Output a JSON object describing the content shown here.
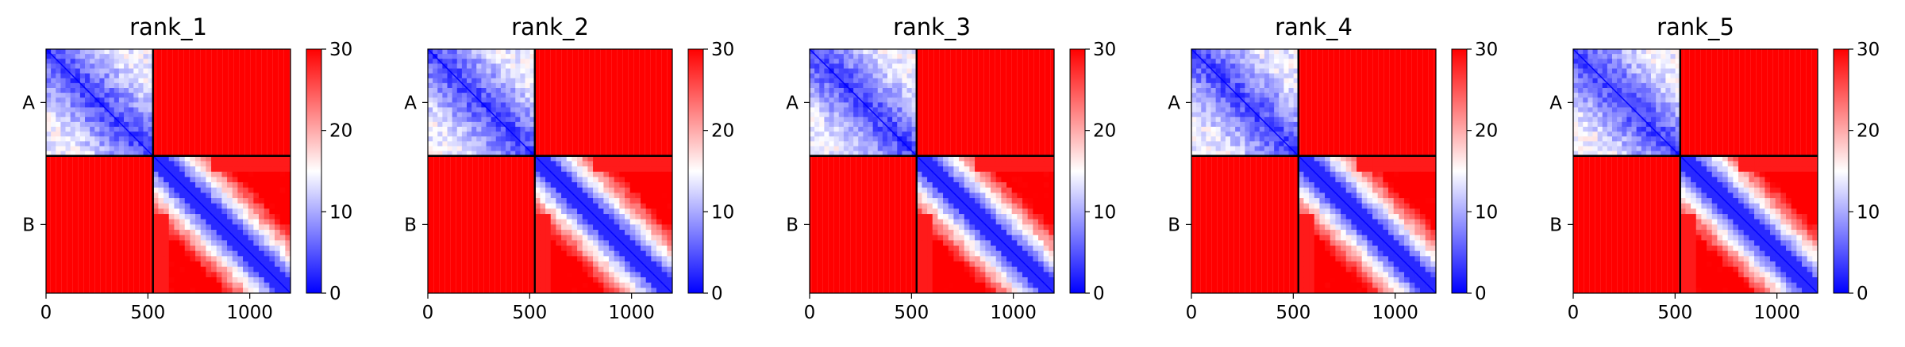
{
  "figure": {
    "colormap": {
      "low": "#0000ff",
      "mid": "#ffffff",
      "high": "#ff0000"
    },
    "colorbar_ticks": [
      "0",
      "10",
      "20",
      "30"
    ]
  },
  "chart_data": [
    {
      "type": "heatmap",
      "title": "rank_1",
      "x_ticks": [
        0,
        500,
        1000
      ],
      "x_tick_labels": [
        "0",
        "500",
        "1000"
      ],
      "xlim": [
        0,
        1200
      ],
      "ylim": [
        0,
        1200
      ],
      "chain_labels": [
        "A",
        "B"
      ],
      "chain_boundary": 525,
      "clim": [
        0,
        30
      ]
    },
    {
      "type": "heatmap",
      "title": "rank_2",
      "x_ticks": [
        0,
        500,
        1000
      ],
      "x_tick_labels": [
        "0",
        "500",
        "1000"
      ],
      "xlim": [
        0,
        1200
      ],
      "ylim": [
        0,
        1200
      ],
      "chain_labels": [
        "A",
        "B"
      ],
      "chain_boundary": 525,
      "clim": [
        0,
        30
      ]
    },
    {
      "type": "heatmap",
      "title": "rank_3",
      "x_ticks": [
        0,
        500,
        1000
      ],
      "x_tick_labels": [
        "0",
        "500",
        "1000"
      ],
      "xlim": [
        0,
        1200
      ],
      "ylim": [
        0,
        1200
      ],
      "chain_labels": [
        "A",
        "B"
      ],
      "chain_boundary": 525,
      "clim": [
        0,
        30
      ]
    },
    {
      "type": "heatmap",
      "title": "rank_4",
      "x_ticks": [
        0,
        500,
        1000
      ],
      "x_tick_labels": [
        "0",
        "500",
        "1000"
      ],
      "xlim": [
        0,
        1200
      ],
      "ylim": [
        0,
        1200
      ],
      "chain_labels": [
        "A",
        "B"
      ],
      "chain_boundary": 525,
      "clim": [
        0,
        30
      ]
    },
    {
      "type": "heatmap",
      "title": "rank_5",
      "x_ticks": [
        0,
        500,
        1000
      ],
      "x_tick_labels": [
        "0",
        "500",
        "1000"
      ],
      "xlim": [
        0,
        1200
      ],
      "ylim": [
        0,
        1200
      ],
      "chain_labels": [
        "A",
        "B"
      ],
      "chain_boundary": 525,
      "clim": [
        0,
        30
      ]
    }
  ]
}
